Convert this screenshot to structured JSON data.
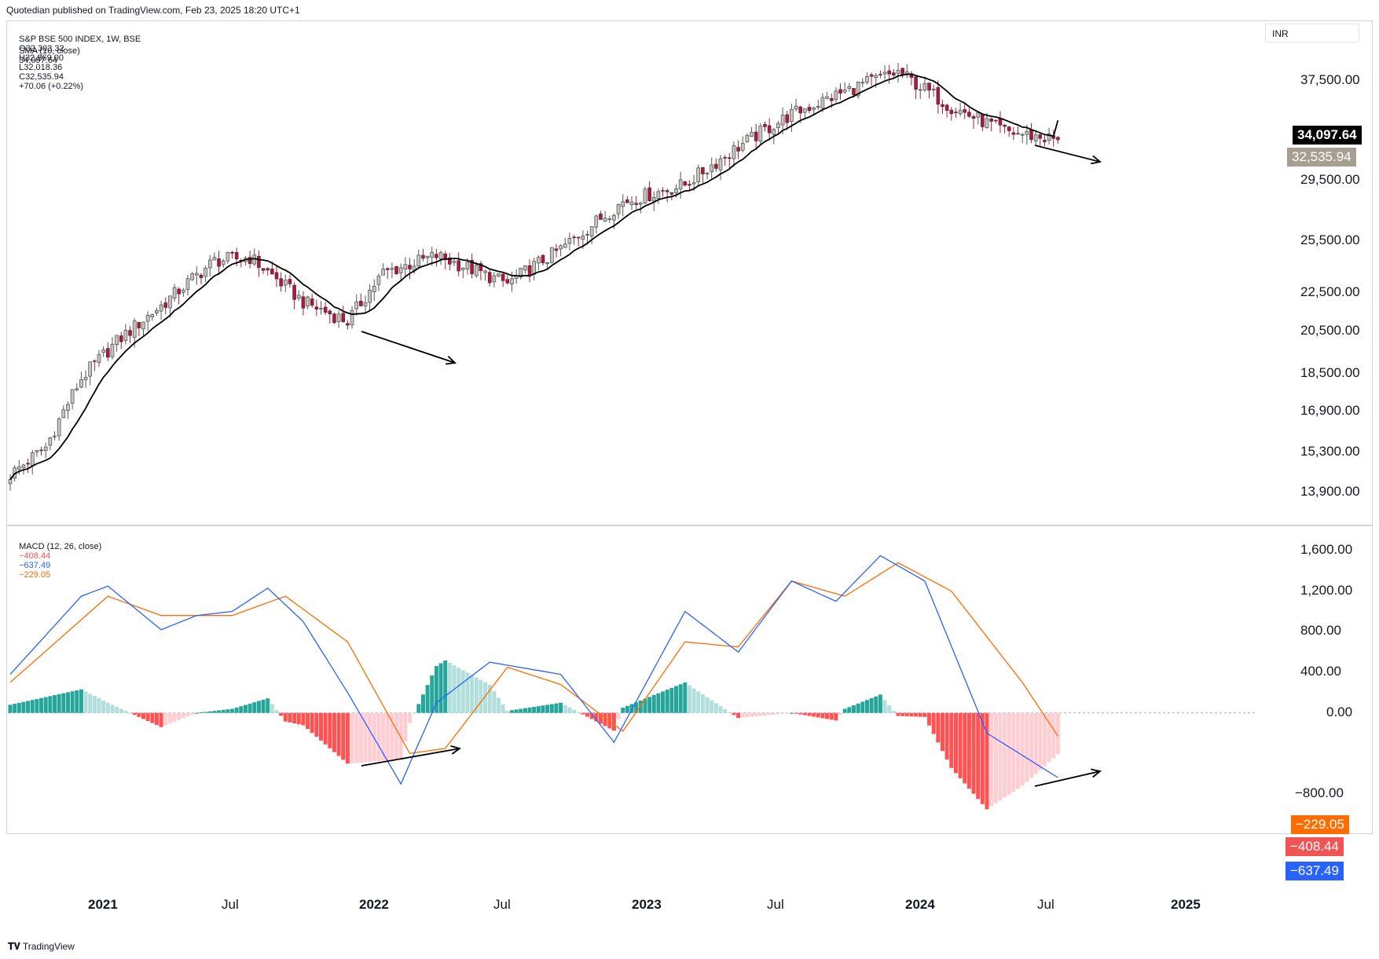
{
  "header": {
    "published": "Quotedian published on TradingView.com, Feb 23, 2025 18:20 UTC+1"
  },
  "legend": {
    "symbol": "S&P BSE 500 INDEX, 1W, BSE",
    "open": "O32,303.32",
    "high": "H32,869.00",
    "low": "L32,018.36",
    "close": "C32,535.94",
    "change": "+70.06 (+0.22%)",
    "sma_label": "SMA (10, close)",
    "sma_value": "34,097.64",
    "macd_label": "MACD (12, 26, close)",
    "macd_hist": "−408.44",
    "macd_line": "−637.49",
    "macd_signal": "−229.05"
  },
  "currency": "INR",
  "price_tags": {
    "sma": "34,097.64",
    "close": "32,535.94"
  },
  "macd_tags": {
    "signal": "−229.05",
    "hist": "−408.44",
    "macd": "−637.49"
  },
  "brand": "TradingView",
  "colors": {
    "up_candle": "#c8c3bc",
    "down_candle": "#b2163f",
    "sma": "#000000",
    "macd_line": "#2962ff",
    "signal_line": "#ff6d00",
    "hist_up_strong": "#26a69a",
    "hist_up_weak": "#b2dfdb",
    "hist_down_strong": "#ff5252",
    "hist_down_weak": "#ffcdd2",
    "tag_sma": "#000000",
    "tag_close": "#a79e92",
    "tag_signal": "#ff6d00",
    "tag_hist": "#f05454",
    "tag_macd": "#2962ff"
  },
  "chart_data": [
    {
      "type": "candlestick",
      "title": "S&P BSE 500 INDEX, 1W, BSE",
      "y_axis_ticks": [
        "37,500.00",
        "29,500.00",
        "25,500.00",
        "22,500.00",
        "20,500.00",
        "18,500.00",
        "16,900.00",
        "15,300.00",
        "13,900.00"
      ],
      "x_axis_ticks": [
        "2021",
        "Jul",
        "2022",
        "Jul",
        "2023",
        "Jul",
        "2024",
        "Jul",
        "2025"
      ],
      "series": [
        {
          "name": "Price close (weekly, approx.)",
          "anchors_week_close": [
            [
              0,
              14500
            ],
            [
              8,
              15500
            ],
            [
              16,
              18300
            ],
            [
              24,
              20000
            ],
            [
              34,
              21800
            ],
            [
              46,
              24300
            ],
            [
              54,
              24500
            ],
            [
              66,
              22000
            ],
            [
              76,
              21000
            ],
            [
              84,
              23600
            ],
            [
              96,
              24600
            ],
            [
              112,
              23000
            ],
            [
              124,
              25000
            ],
            [
              138,
              28000
            ],
            [
              152,
              29200
            ],
            [
              164,
              32000
            ],
            [
              176,
              34600
            ],
            [
              192,
              37200
            ],
            [
              200,
              38300
            ],
            [
              212,
              35200
            ],
            [
              224,
              33200
            ],
            [
              236,
              32536
            ]
          ]
        },
        {
          "name": "SMA (10, close)",
          "last": 34097.64
        }
      ],
      "annotations": [
        "arrow 2022 price lower low",
        "arrow 2025 price lower"
      ]
    },
    {
      "type": "macd",
      "title": "MACD (12, 26, close)",
      "y_axis_ticks": [
        "1,600.00",
        "1,200.00",
        "800.00",
        "400.00",
        "0.00",
        "−800.00"
      ],
      "series": [
        {
          "name": "MACD",
          "anchors": [
            [
              0,
              380
            ],
            [
              16,
              1150
            ],
            [
              22,
              1250
            ],
            [
              34,
              820
            ],
            [
              42,
              960
            ],
            [
              50,
              1000
            ],
            [
              58,
              1230
            ],
            [
              66,
              900
            ],
            [
              76,
              200
            ],
            [
              88,
              -700
            ],
            [
              96,
              100
            ],
            [
              108,
              500
            ],
            [
              124,
              380
            ],
            [
              136,
              -290
            ],
            [
              152,
              1000
            ],
            [
              164,
              600
            ],
            [
              176,
              1300
            ],
            [
              186,
              1100
            ],
            [
              196,
              1550
            ],
            [
              206,
              1300
            ],
            [
              220,
              -200
            ],
            [
              236,
              -637.49
            ]
          ]
        },
        {
          "name": "Signal",
          "anchors": [
            [
              0,
              300
            ],
            [
              22,
              1150
            ],
            [
              34,
              960
            ],
            [
              50,
              960
            ],
            [
              62,
              1150
            ],
            [
              76,
              700
            ],
            [
              90,
              -400
            ],
            [
              98,
              -350
            ],
            [
              112,
              450
            ],
            [
              124,
              280
            ],
            [
              138,
              -180
            ],
            [
              152,
              700
            ],
            [
              164,
              650
            ],
            [
              176,
              1300
            ],
            [
              188,
              1150
            ],
            [
              200,
              1480
            ],
            [
              212,
              1200
            ],
            [
              228,
              300
            ],
            [
              236,
              -229.05
            ]
          ]
        },
        {
          "name": "Histogram",
          "last": -408.44
        }
      ],
      "annotations": [
        "arrow 2022 MACD higher low",
        "arrow 2025 MACD higher"
      ]
    }
  ]
}
